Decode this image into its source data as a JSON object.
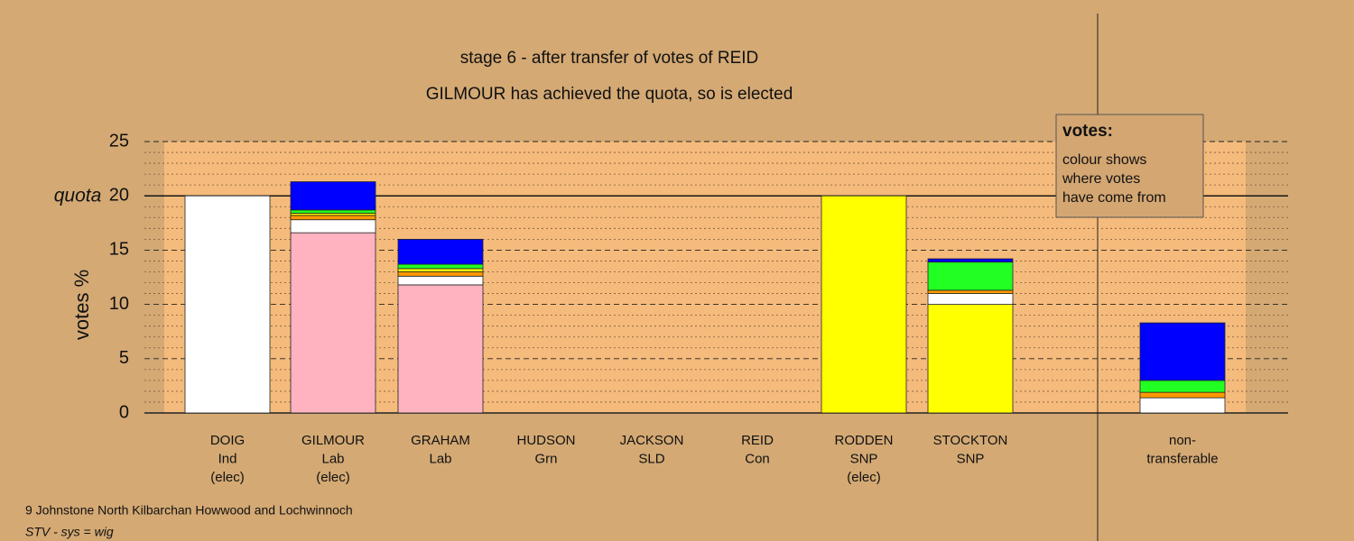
{
  "chart_data": {
    "type": "stacked-bar",
    "title": "stage 6 - after transfer of votes of REID",
    "subtitle": "GILMOUR has achieved the quota, so is elected",
    "y_label": "votes %",
    "quota_label": "quota",
    "quota": 20,
    "ylim": [
      0,
      25
    ],
    "yticks": [
      0,
      5,
      10,
      15,
      20,
      25
    ],
    "minor_yticks": [
      1,
      2,
      3,
      4,
      6,
      7,
      8,
      9,
      11,
      12,
      13,
      14,
      16,
      17,
      18,
      19,
      21,
      22,
      23,
      24
    ],
    "categories": [
      {
        "lines": [
          "DOIG",
          "Ind",
          "(elec)"
        ],
        "segments": [
          {
            "color": "#ffffff",
            "value": 20
          }
        ]
      },
      {
        "lines": [
          "GILMOUR",
          "Lab",
          "(elec)"
        ],
        "segments": [
          {
            "color": "#ffb3c1",
            "value": 16.6
          },
          {
            "color": "#ffffff",
            "value": 1.2
          },
          {
            "color": "#ff9900",
            "value": 0.4
          },
          {
            "color": "#ffff00",
            "value": 0.2
          },
          {
            "color": "#22ff22",
            "value": 0.3
          },
          {
            "color": "#0000ff",
            "value": 2.6
          }
        ]
      },
      {
        "lines": [
          "GRAHAM",
          "Lab"
        ],
        "segments": [
          {
            "color": "#ffb3c1",
            "value": 11.8
          },
          {
            "color": "#ffffff",
            "value": 0.8
          },
          {
            "color": "#ff9900",
            "value": 0.4
          },
          {
            "color": "#ffff00",
            "value": 0.3
          },
          {
            "color": "#22ff22",
            "value": 0.4
          },
          {
            "color": "#0000ff",
            "value": 2.3
          }
        ]
      },
      {
        "lines": [
          "HUDSON",
          "Grn"
        ],
        "segments": [
          {
            "color": "#00aa00",
            "value": 0
          }
        ]
      },
      {
        "lines": [
          "JACKSON",
          "SLD"
        ],
        "segments": [
          {
            "color": "#ffcc00",
            "value": 0
          }
        ]
      },
      {
        "lines": [
          "REID",
          "Con"
        ],
        "segments": [
          {
            "color": "#0000ff",
            "value": 0
          }
        ]
      },
      {
        "lines": [
          "RODDEN",
          "SNP",
          "(elec)"
        ],
        "segments": [
          {
            "color": "#ffff00",
            "value": 20
          }
        ]
      },
      {
        "lines": [
          "STOCKTON",
          "SNP"
        ],
        "segments": [
          {
            "color": "#ffff00",
            "value": 10
          },
          {
            "color": "#ffffff",
            "value": 1.0
          },
          {
            "color": "#ff9900",
            "value": 0.3
          },
          {
            "color": "#22ff22",
            "value": 2.6
          },
          {
            "color": "#0000ff",
            "value": 0.3
          }
        ]
      },
      {
        "lines": [
          "non-",
          "transferable"
        ],
        "segments": [
          {
            "color": "#ffffff",
            "value": 1.4
          },
          {
            "color": "#ff9900",
            "value": 0.5
          },
          {
            "color": "#22ff22",
            "value": 1.1
          },
          {
            "color": "#0000ff",
            "value": 5.3
          }
        ]
      }
    ],
    "legend": {
      "heading": "votes:",
      "lines": [
        "colour shows",
        "where votes",
        "have come from"
      ]
    },
    "footer": [
      "9 Johnstone North Kilbarchan Howwood and Lochwinnoch",
      "STV - sys = wig"
    ]
  }
}
